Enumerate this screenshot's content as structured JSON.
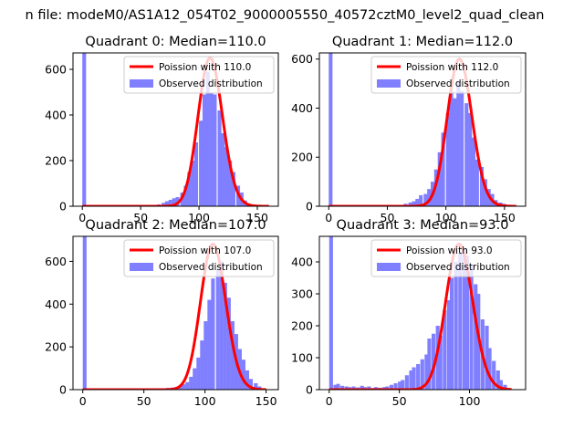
{
  "suptitle": "n file: modeM0/AS1A12_054T02_9000005550_40572cztM0_level2_quad_clean",
  "colors": {
    "bars": "#7f7fff",
    "poisson_line": "#ff0000",
    "axes": "#000000",
    "legend_border": "#cccccc"
  },
  "chart_data": [
    {
      "type": "bar",
      "title": "Quadrant 0: Median=110.0",
      "xlim": [
        -8,
        168
      ],
      "ylim": [
        0,
        672
      ],
      "xticks": [
        0,
        50,
        100,
        150
      ],
      "yticks": [
        0,
        200,
        400,
        600
      ],
      "legend": {
        "location": "top-right",
        "entries": [
          "Poission with 110.0",
          "Observed distribution"
        ]
      },
      "series": [
        {
          "name": "Observed distribution",
          "kind": "histogram",
          "bin_width": 3.2,
          "bins": [
            [
              0,
              672
            ],
            [
              64,
              8
            ],
            [
              68,
              15
            ],
            [
              71,
              22
            ],
            [
              74,
              28
            ],
            [
              77,
              35
            ],
            [
              80,
              40
            ],
            [
              84,
              60
            ],
            [
              87,
              90
            ],
            [
              90,
              150
            ],
            [
              93,
              200
            ],
            [
              96,
              280
            ],
            [
              100,
              375
            ],
            [
              103,
              490
            ],
            [
              106,
              590
            ],
            [
              109,
              495
            ],
            [
              112,
              490
            ],
            [
              116,
              420
            ],
            [
              119,
              320
            ],
            [
              122,
              260
            ],
            [
              125,
              200
            ],
            [
              128,
              150
            ],
            [
              132,
              90
            ],
            [
              135,
              60
            ],
            [
              138,
              25
            ],
            [
              141,
              12
            ],
            [
              144,
              5
            ],
            [
              148,
              3
            ]
          ]
        },
        {
          "name": "Poission with 110.0",
          "kind": "poisson_curve",
          "mean": 110.0,
          "peak": 650,
          "x_range": [
            0,
            160
          ]
        }
      ]
    },
    {
      "type": "bar",
      "title": "Quadrant 1: Median=112.0",
      "xlim": [
        -8,
        168
      ],
      "ylim": [
        0,
        625
      ],
      "xticks": [
        0,
        50,
        100,
        150
      ],
      "yticks": [
        0,
        200,
        400,
        600
      ],
      "legend": {
        "location": "top-right",
        "entries": [
          "Poission with 112.0",
          "Observed distribution"
        ]
      },
      "series": [
        {
          "name": "Observed distribution",
          "kind": "histogram",
          "bin_width": 3.2,
          "bins": [
            [
              0,
              625
            ],
            [
              64,
              10
            ],
            [
              68,
              15
            ],
            [
              71,
              20
            ],
            [
              74,
              30
            ],
            [
              77,
              45
            ],
            [
              81,
              50
            ],
            [
              84,
              70
            ],
            [
              87,
              100
            ],
            [
              90,
              150
            ],
            [
              93,
              220
            ],
            [
              96,
              300
            ],
            [
              100,
              380
            ],
            [
              103,
              470
            ],
            [
              106,
              440
            ],
            [
              109,
              510
            ],
            [
              112,
              470
            ],
            [
              116,
              420
            ],
            [
              119,
              380
            ],
            [
              122,
              280
            ],
            [
              125,
              190
            ],
            [
              129,
              160
            ],
            [
              132,
              110
            ],
            [
              135,
              70
            ],
            [
              138,
              50
            ],
            [
              141,
              25
            ],
            [
              145,
              15
            ],
            [
              148,
              10
            ]
          ]
        },
        {
          "name": "Poission with 112.0",
          "kind": "poisson_curve",
          "mean": 112.0,
          "peak": 600,
          "x_range": [
            0,
            160
          ]
        }
      ]
    },
    {
      "type": "bar",
      "title": "Quadrant 2: Median=107.0",
      "xlim": [
        -8,
        160
      ],
      "ylim": [
        0,
        717
      ],
      "xticks": [
        0,
        50,
        100,
        150
      ],
      "yticks": [
        0,
        200,
        400,
        600
      ],
      "legend": {
        "location": "top-right",
        "entries": [
          "Poission with 107.0",
          "Observed distribution"
        ]
      },
      "series": [
        {
          "name": "Observed distribution",
          "kind": "histogram",
          "bin_width": 3.1,
          "bins": [
            [
              0,
              717
            ],
            [
              62,
              3
            ],
            [
              65,
              5
            ],
            [
              68,
              8
            ],
            [
              72,
              10
            ],
            [
              75,
              12
            ],
            [
              78,
              18
            ],
            [
              81,
              25
            ],
            [
              84,
              35
            ],
            [
              87,
              60
            ],
            [
              90,
              100
            ],
            [
              93,
              150
            ],
            [
              96,
              230
            ],
            [
              99,
              320
            ],
            [
              102,
              420
            ],
            [
              105,
              520
            ],
            [
              109,
              560
            ],
            [
              112,
              600
            ],
            [
              115,
              500
            ],
            [
              118,
              430
            ],
            [
              121,
              320
            ],
            [
              124,
              260
            ],
            [
              127,
              190
            ],
            [
              130,
              140
            ],
            [
              133,
              90
            ],
            [
              136,
              50
            ],
            [
              140,
              30
            ],
            [
              143,
              15
            ]
          ]
        },
        {
          "name": "Poission with 107.0",
          "kind": "poisson_curve",
          "mean": 107.0,
          "peak": 680,
          "x_range": [
            0,
            150
          ]
        }
      ]
    },
    {
      "type": "bar",
      "title": "Quadrant 3: Median=93.0",
      "xlim": [
        -7,
        140
      ],
      "ylim": [
        0,
        480
      ],
      "xticks": [
        0,
        50,
        100
      ],
      "yticks": [
        0,
        100,
        200,
        300,
        400
      ],
      "legend": {
        "location": "top-right",
        "entries": [
          "Poission with 93.0",
          "Observed distribution"
        ]
      },
      "series": [
        {
          "name": "Observed distribution",
          "kind": "histogram",
          "bin_width": 2.7,
          "bins": [
            [
              0,
              480
            ],
            [
              3,
              15
            ],
            [
              5,
              18
            ],
            [
              8,
              12
            ],
            [
              11,
              10
            ],
            [
              13,
              8
            ],
            [
              16,
              10
            ],
            [
              19,
              7
            ],
            [
              22,
              12
            ],
            [
              24,
              8
            ],
            [
              27,
              10
            ],
            [
              30,
              5
            ],
            [
              32,
              8
            ],
            [
              35,
              6
            ],
            [
              38,
              8
            ],
            [
              40,
              10
            ],
            [
              43,
              15
            ],
            [
              46,
              20
            ],
            [
              49,
              25
            ],
            [
              51,
              30
            ],
            [
              54,
              45
            ],
            [
              57,
              60
            ],
            [
              59,
              70
            ],
            [
              62,
              80
            ],
            [
              65,
              95
            ],
            [
              68,
              110
            ],
            [
              70,
              160
            ],
            [
              73,
              175
            ],
            [
              76,
              200
            ],
            [
              78,
              170
            ],
            [
              81,
              250
            ],
            [
              84,
              280
            ],
            [
              86,
              350
            ],
            [
              89,
              400
            ],
            [
              92,
              430
            ],
            [
              95,
              440
            ],
            [
              97,
              420
            ],
            [
              100,
              390
            ],
            [
              103,
              330
            ],
            [
              105,
              300
            ],
            [
              108,
              220
            ],
            [
              111,
              200
            ],
            [
              113,
              130
            ],
            [
              116,
              90
            ],
            [
              119,
              60
            ],
            [
              121,
              30
            ],
            [
              124,
              15
            ]
          ]
        },
        {
          "name": "Poission with 93.0",
          "kind": "poisson_curve",
          "mean": 93.0,
          "peak": 455,
          "x_range": [
            0,
            130
          ]
        }
      ]
    }
  ]
}
